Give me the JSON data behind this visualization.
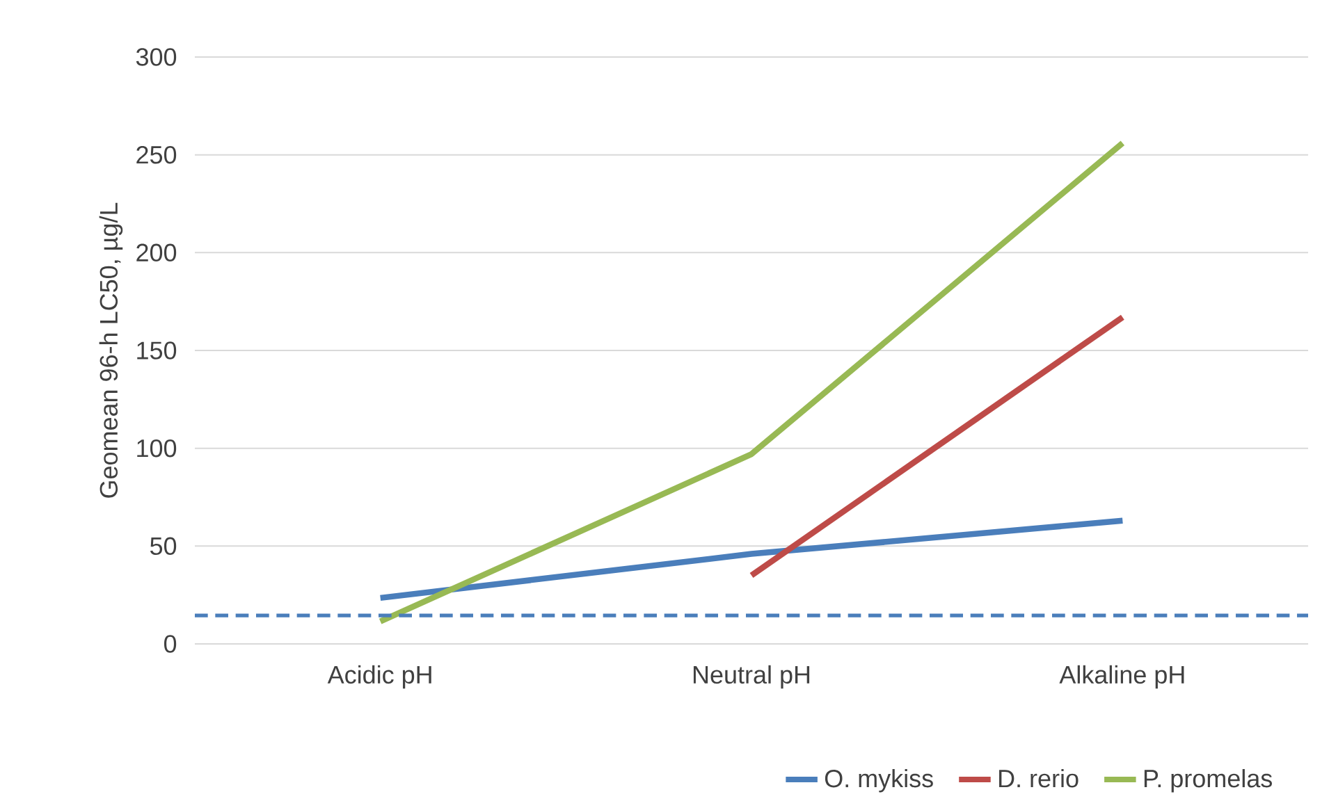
{
  "chart_data": {
    "type": "line",
    "ylabel": "Geomean 96-h LC50, µg/L",
    "categories": [
      "Acidic pH",
      "Neutral pH",
      "Alkaline pH"
    ],
    "series": [
      {
        "name": "O. mykiss",
        "color": "#4a7ebb",
        "values": [
          23.5,
          46,
          63
        ]
      },
      {
        "name": "D. rerio",
        "color": "#be4b48",
        "values": [
          null,
          35,
          167
        ]
      },
      {
        "name": "P. promelas",
        "color": "#98b954",
        "values": [
          11.5,
          97,
          256
        ]
      }
    ],
    "ylim": [
      0,
      300
    ],
    "yticks": [
      0,
      50,
      100,
      150,
      200,
      250,
      300
    ],
    "grid": "y",
    "legend": "bottom",
    "marker": "none",
    "line_style": "solid",
    "ref_lines": [
      {
        "axis": "y",
        "value": 14.5,
        "color": "#4a7ebb",
        "line_style": "dashed"
      }
    ]
  }
}
